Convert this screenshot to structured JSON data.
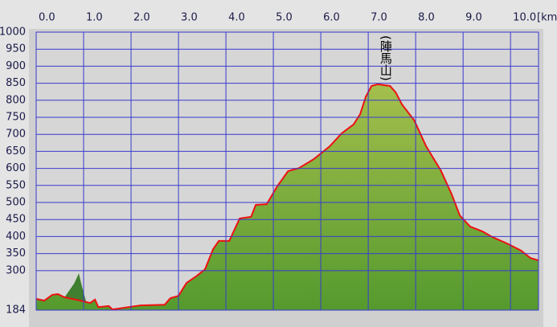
{
  "chart_data": {
    "type": "area",
    "x_unit_label": "[km",
    "annotation": "(陣馬山)",
    "xlim": [
      0,
      10.59
    ],
    "ylim": [
      184,
      1000
    ],
    "xticks": [
      {
        "value": 0,
        "label": "0.0"
      },
      {
        "value": 1,
        "label": "1.0"
      },
      {
        "value": 2,
        "label": "2.0"
      },
      {
        "value": 3,
        "label": "3.0"
      },
      {
        "value": 4,
        "label": "4.0"
      },
      {
        "value": 5,
        "label": "5.0"
      },
      {
        "value": 6,
        "label": "6.0"
      },
      {
        "value": 7,
        "label": "7.0"
      },
      {
        "value": 8,
        "label": "8.0"
      },
      {
        "value": 9,
        "label": "9.0"
      },
      {
        "value": 10,
        "label": "10.0"
      }
    ],
    "yticks": [
      184,
      300,
      350,
      400,
      450,
      500,
      550,
      600,
      650,
      700,
      750,
      800,
      850,
      900,
      950,
      1000
    ],
    "grid": true,
    "series": [
      {
        "color": "#3f7f2f",
        "line": false,
        "x": [
          0.6,
          0.8,
          0.9,
          0.95,
          1.05
        ],
        "values": [
          222,
          262,
          292,
          262,
          210
        ]
      },
      {
        "color": "#ee1111",
        "line": true,
        "x": [
          0,
          0.17,
          0.34,
          0.46,
          0.59,
          0.76,
          0.93,
          1.14,
          1.24,
          1.31,
          1.53,
          1.61,
          1.95,
          2.2,
          2.71,
          2.83,
          3.0,
          3.17,
          3.39,
          3.56,
          3.73,
          3.85,
          4.07,
          4.29,
          4.53,
          4.63,
          4.86,
          5.08,
          5.31,
          5.54,
          5.85,
          6.19,
          6.44,
          6.69,
          6.83,
          6.95,
          7.07,
          7.2,
          7.46,
          7.58,
          7.71,
          7.97,
          8.22,
          8.53,
          8.76,
          8.93,
          9.15,
          9.41,
          9.61,
          9.92,
          10.22,
          10.42,
          10.59
        ],
        "values": [
          217,
          212,
          229,
          231,
          222,
          217,
          212,
          205,
          215,
          193,
          196,
          186,
          193,
          198,
          200,
          219,
          226,
          264,
          285,
          304,
          363,
          387,
          387,
          453,
          458,
          493,
          495,
          547,
          592,
          601,
          627,
          665,
          703,
          729,
          759,
          811,
          842,
          847,
          842,
          823,
          788,
          741,
          665,
          594,
          524,
          462,
          429,
          415,
          399,
          380,
          359,
          337,
          330
        ]
      }
    ]
  }
}
